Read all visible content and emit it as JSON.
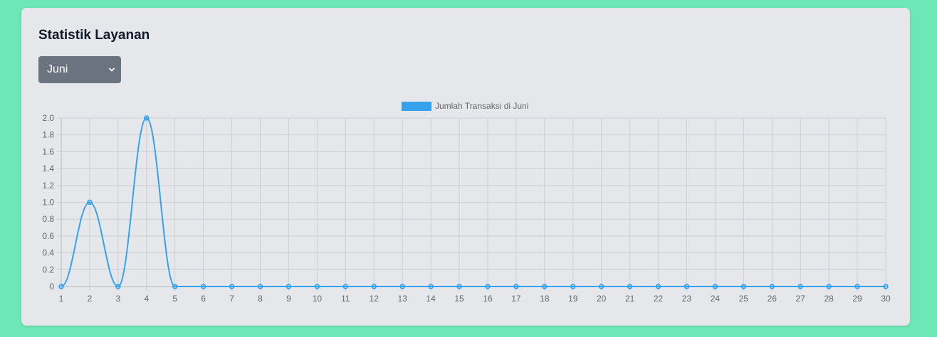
{
  "card": {
    "title": "Statistik Layanan",
    "month_select": {
      "value": "Juni"
    }
  },
  "colors": {
    "line": "#36a2eb",
    "grid": "#cfcfd4",
    "card_bg": "#e5e7eb",
    "page_bg": "#6ee7b7"
  },
  "chart_data": {
    "type": "line",
    "x": [
      1,
      2,
      3,
      4,
      5,
      6,
      7,
      8,
      9,
      10,
      11,
      12,
      13,
      14,
      15,
      16,
      17,
      18,
      19,
      20,
      21,
      22,
      23,
      24,
      25,
      26,
      27,
      28,
      29,
      30
    ],
    "series": [
      {
        "name": "Jumlah Transaksi di Juni",
        "values": [
          0,
          1,
          0,
          2,
          0,
          0,
          0,
          0,
          0,
          0,
          0,
          0,
          0,
          0,
          0,
          0,
          0,
          0,
          0,
          0,
          0,
          0,
          0,
          0,
          0,
          0,
          0,
          0,
          0,
          0
        ]
      }
    ],
    "yticks": [
      "0",
      "0.2",
      "0.4",
      "0.6",
      "0.8",
      "1.0",
      "1.2",
      "1.4",
      "1.6",
      "1.8",
      "2.0"
    ],
    "ylim": [
      0,
      2
    ],
    "grid": true,
    "legend": "top-center"
  }
}
